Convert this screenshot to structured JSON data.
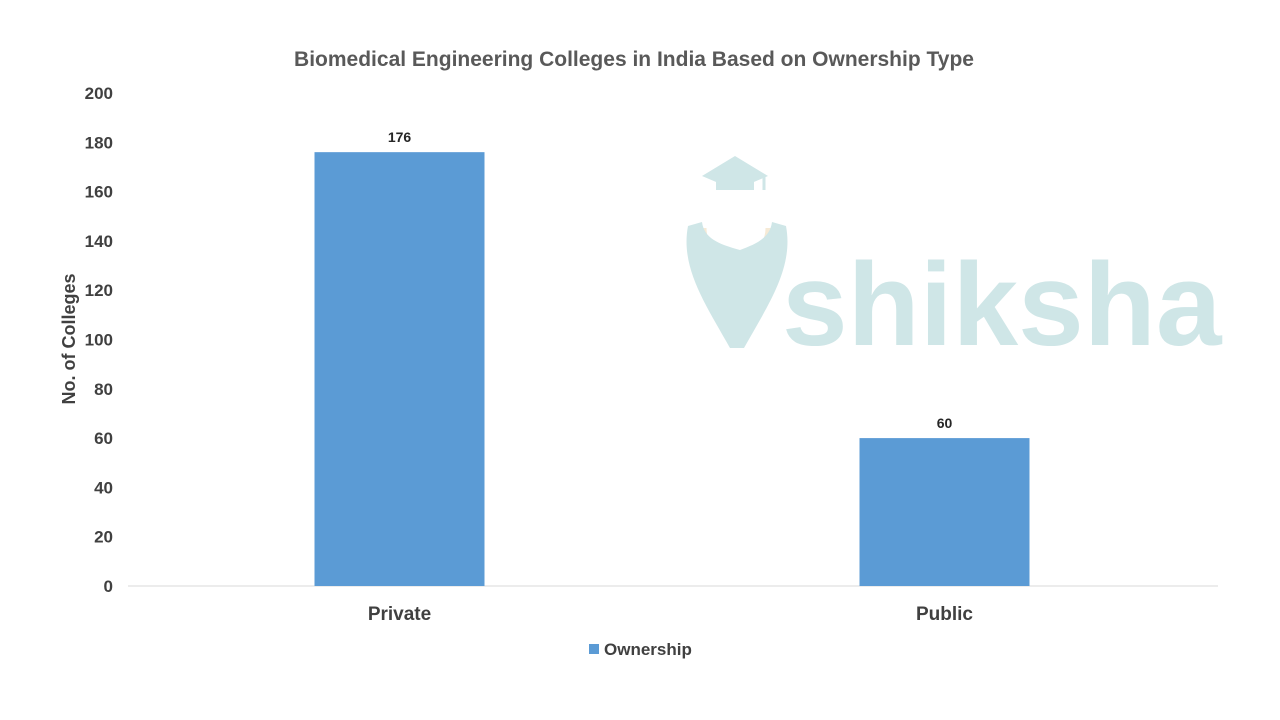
{
  "chart_data": {
    "type": "bar",
    "title": "Biomedical Engineering Colleges in India Based on Ownership Type",
    "xlabel": "",
    "ylabel": "No. of Colleges",
    "categories": [
      "Private",
      "Public"
    ],
    "series": [
      {
        "name": "Ownership",
        "values": [
          176,
          60
        ],
        "color": "#5b9bd5"
      }
    ],
    "ylim": [
      0,
      200
    ],
    "yticks": [
      0,
      20,
      40,
      60,
      80,
      100,
      120,
      140,
      160,
      180,
      200
    ],
    "data_labels": [
      "176",
      "60"
    ],
    "grid": false,
    "legend": "bottom"
  },
  "watermark": {
    "text": "shiksha",
    "color": "#cfe6e7"
  }
}
